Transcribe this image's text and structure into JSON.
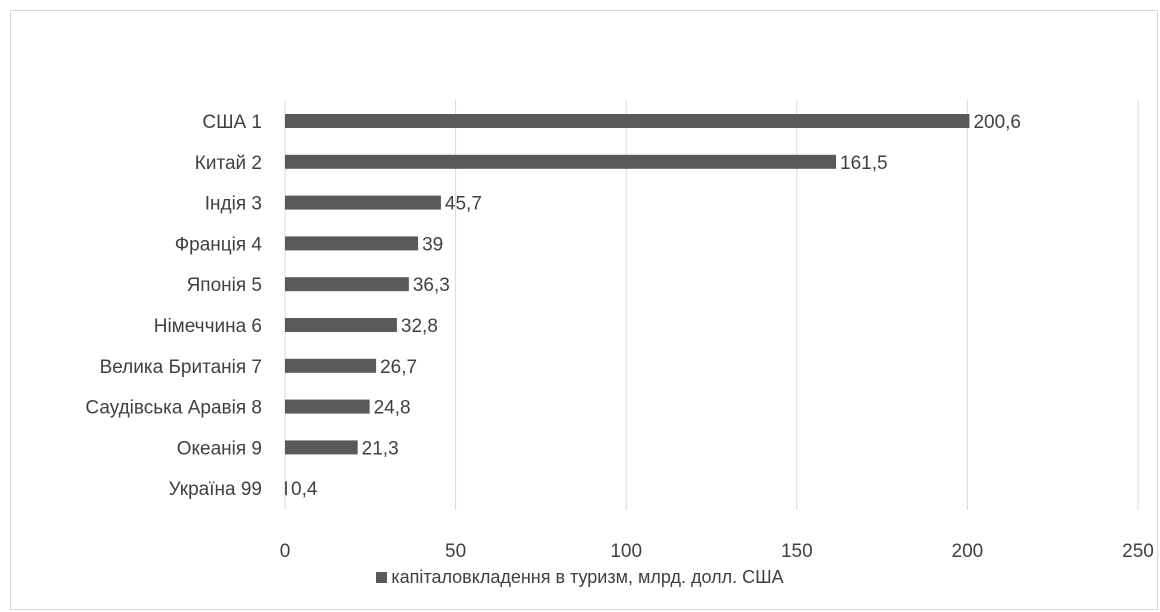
{
  "chart_data": {
    "type": "bar",
    "orientation": "horizontal",
    "categories": [
      "США 1",
      "Китай 2",
      "Індія 3",
      "Франція 4",
      "Японія 5",
      "Німеччина 6",
      "Велика Британія 7",
      "Саудівська Аравія 8",
      "Океанія 9",
      "Україна 99"
    ],
    "series": [
      {
        "name": "капіталовкладення в туризм, млрд. долл. США",
        "values": [
          200.6,
          161.5,
          45.7,
          39,
          36.3,
          32.8,
          26.7,
          24.8,
          21.3,
          0.4
        ],
        "labels": [
          "200,6",
          "161,5",
          "45,7",
          "39",
          "36,3",
          "32,8",
          "26,7",
          "24,8",
          "21,3",
          "0,4"
        ],
        "color": "#595959"
      }
    ],
    "xlim": [
      0,
      250
    ],
    "xticks": [
      0,
      50,
      100,
      150,
      200,
      250
    ],
    "xtick_labels": [
      "0",
      "50",
      "100",
      "150",
      "200",
      "250"
    ],
    "gridlines": "vertical",
    "legend_position": "bottom",
    "title": "",
    "xlabel": "",
    "ylabel": ""
  },
  "colors": {
    "bar": "#595959",
    "grid": "#d9d9d9",
    "text": "#404040"
  }
}
